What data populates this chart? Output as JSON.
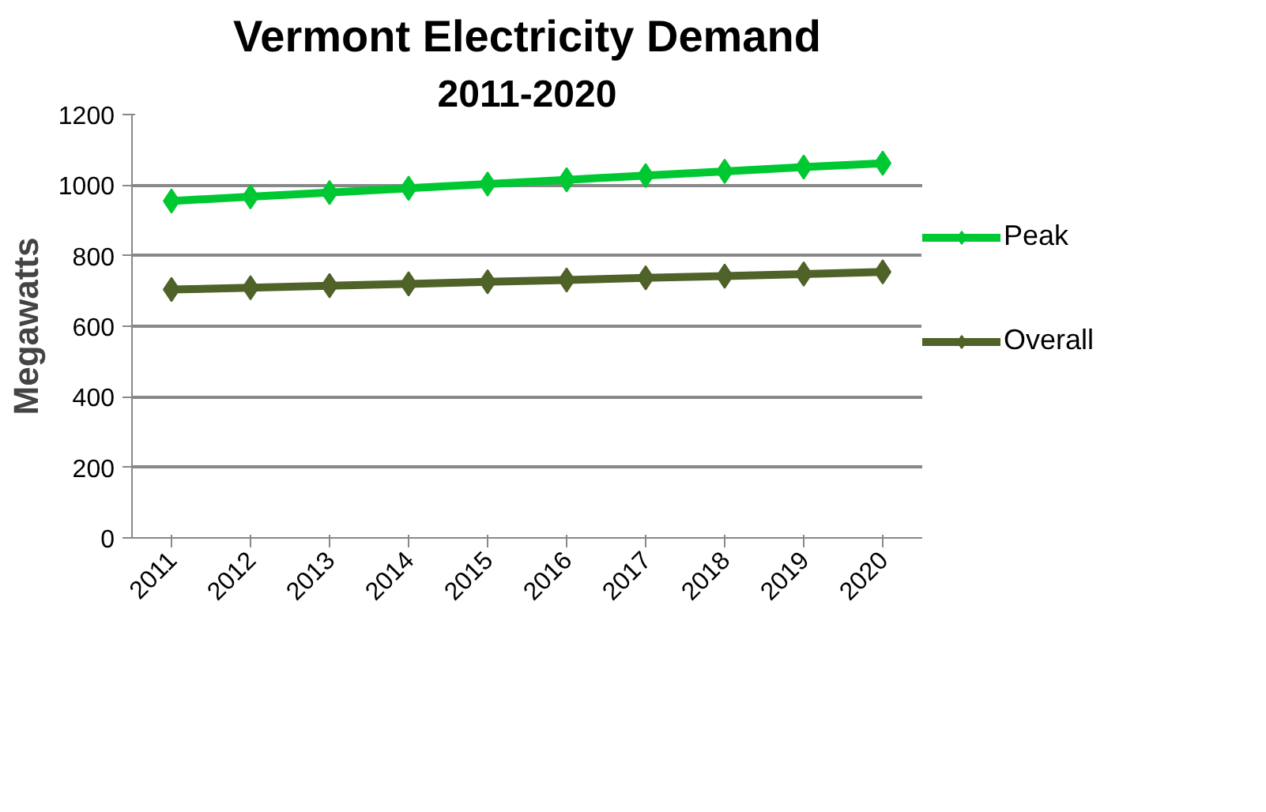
{
  "chart_data": {
    "type": "line",
    "title": "Vermont Electricity Demand",
    "subtitle": "2011-2020",
    "ylabel": "Megawatts",
    "categories": [
      "2011",
      "2012",
      "2013",
      "2014",
      "2015",
      "2016",
      "2017",
      "2018",
      "2019",
      "2020"
    ],
    "series": [
      {
        "name": "Peak",
        "color": "#00c832",
        "values": [
          955,
          967,
          979,
          991,
          1003,
          1015,
          1027,
          1039,
          1051,
          1062
        ]
      },
      {
        "name": "Overall",
        "color": "#4f6228",
        "values": [
          704,
          709,
          715,
          720,
          726,
          731,
          737,
          742,
          748,
          754
        ]
      }
    ],
    "ylim": [
      0,
      1200
    ],
    "yticks": [
      0,
      200,
      400,
      600,
      800,
      1000,
      1200
    ],
    "grid": "y",
    "legend": "right",
    "marker": "diamond",
    "line_style": "solid"
  }
}
